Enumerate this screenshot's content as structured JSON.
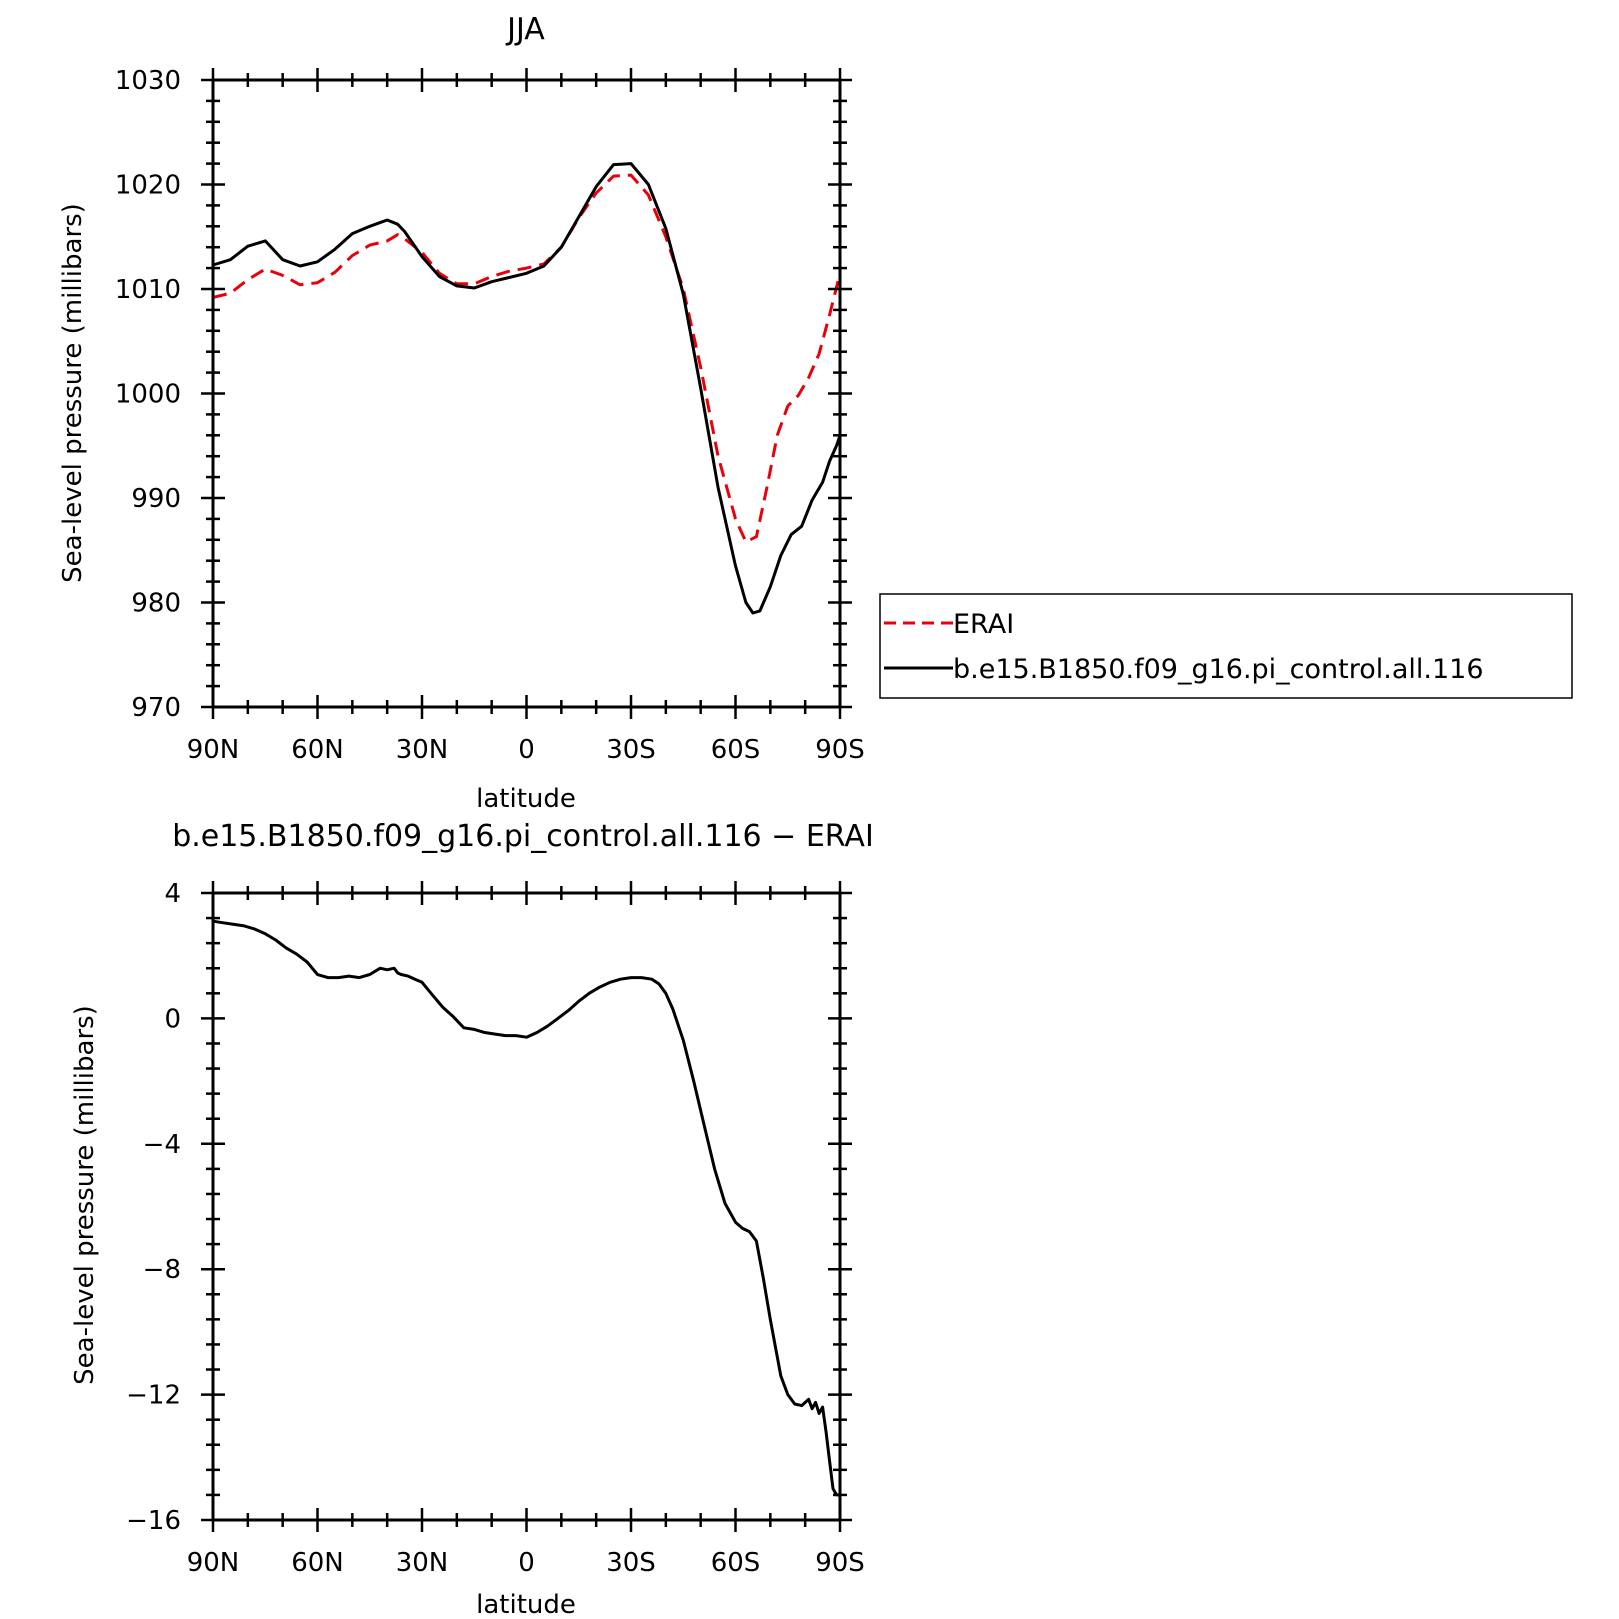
{
  "chart_data": [
    {
      "type": "line",
      "title": "JJA",
      "xlabel": "latitude",
      "ylabel": "Sea-level pressure (millibars)",
      "xlim": [
        90,
        -90
      ],
      "ylim": [
        970,
        1030
      ],
      "yticks": [
        970,
        980,
        990,
        1000,
        1010,
        1020,
        1030
      ],
      "xtick_values": [
        90,
        60,
        30,
        0,
        -30,
        -60,
        -90
      ],
      "xtick_labels": [
        "90N",
        "60N",
        "30N",
        "0",
        "30S",
        "60S",
        "90S"
      ],
      "grid": false,
      "legend": {
        "placement": "right-outside"
      },
      "series": [
        {
          "name": "ERAI",
          "color": "#e8000b",
          "dash": "dashed",
          "x": [
            90,
            85,
            80,
            75,
            70,
            65,
            60,
            55,
            50,
            45,
            40,
            37,
            35,
            30,
            25,
            20,
            15,
            10,
            5,
            0,
            -5,
            -10,
            -15,
            -20,
            -25,
            -30,
            -35,
            -40,
            -45,
            -50,
            -55,
            -60,
            -63,
            -66,
            -69,
            -72,
            -75,
            -78,
            -81,
            -84,
            -87,
            -90
          ],
          "y": [
            1009.2,
            1009.6,
            1010.9,
            1011.9,
            1011.3,
            1010.4,
            1010.6,
            1011.6,
            1013.2,
            1014.2,
            1014.6,
            1015.2,
            1014.8,
            1013.5,
            1011.5,
            1010.5,
            1010.5,
            1011.2,
            1011.7,
            1012.0,
            1012.4,
            1014.0,
            1016.8,
            1019.2,
            1020.8,
            1020.9,
            1019.0,
            1015.0,
            1010.0,
            1002.5,
            994.0,
            988.0,
            985.8,
            986.3,
            991.0,
            996.0,
            998.8,
            999.8,
            1001.5,
            1003.8,
            1007.5,
            1011.5
          ]
        },
        {
          "name": "b.e15.B1850.f09_g16.pi_control.all.116",
          "color": "#000000",
          "dash": "solid",
          "x": [
            90,
            85,
            80,
            75,
            70,
            65,
            60,
            55,
            50,
            45,
            40,
            37,
            35,
            30,
            25,
            20,
            15,
            10,
            5,
            0,
            -5,
            -10,
            -15,
            -20,
            -25,
            -30,
            -35,
            -40,
            -45,
            -50,
            -55,
            -60,
            -63,
            -65,
            -67,
            -70,
            -73,
            -76,
            -79,
            -82,
            -85,
            -87,
            -89,
            -90
          ],
          "y": [
            1012.3,
            1012.8,
            1014.1,
            1014.6,
            1012.8,
            1012.2,
            1012.6,
            1013.8,
            1015.3,
            1016.0,
            1016.6,
            1016.2,
            1015.5,
            1013.1,
            1011.2,
            1010.3,
            1010.1,
            1010.7,
            1011.1,
            1011.5,
            1012.2,
            1014.0,
            1016.9,
            1019.8,
            1021.9,
            1022.0,
            1020.0,
            1015.8,
            1009.5,
            1000.5,
            991.0,
            983.5,
            980.0,
            979.0,
            979.2,
            981.5,
            984.5,
            986.5,
            987.3,
            989.8,
            991.5,
            993.5,
            995.0,
            996.0
          ]
        }
      ]
    },
    {
      "type": "line",
      "title": "b.e15.B1850.f09_g16.pi_control.all.116 − ERAI",
      "xlabel": "latitude",
      "ylabel": "Sea-level pressure (millibars)",
      "xlim": [
        90,
        -90
      ],
      "ylim": [
        -16,
        4
      ],
      "yticks": [
        -16,
        -12,
        -8,
        -4,
        0,
        4
      ],
      "ytick_labels": [
        "−16",
        "−12",
        "−8",
        "−4",
        "0",
        "4"
      ],
      "xtick_values": [
        90,
        60,
        30,
        0,
        -30,
        -60,
        -90
      ],
      "xtick_labels": [
        "90N",
        "60N",
        "30N",
        "0",
        "30S",
        "60S",
        "90S"
      ],
      "grid": false,
      "series": [
        {
          "color": "#000000",
          "dash": "solid",
          "x": [
            90,
            87,
            84,
            81,
            78,
            75,
            72,
            69,
            66,
            63,
            60,
            57,
            54,
            51,
            48,
            45,
            42,
            40,
            38,
            37,
            36,
            34,
            32,
            30,
            27,
            24,
            21,
            18,
            15,
            12,
            9,
            6,
            3,
            0,
            -3,
            -6,
            -9,
            -12,
            -15,
            -18,
            -21,
            -24,
            -27,
            -30,
            -33,
            -36,
            -38,
            -40,
            -42,
            -45,
            -48,
            -51,
            -54,
            -57,
            -60,
            -62,
            -64,
            -66,
            -68,
            -70,
            -72,
            -73,
            -75,
            -77,
            -79,
            -81,
            -82,
            -83,
            -84,
            -85,
            -86,
            -87,
            -88,
            -89,
            -90
          ],
          "y": [
            3.1,
            3.05,
            3.0,
            2.95,
            2.85,
            2.7,
            2.5,
            2.25,
            2.05,
            1.8,
            1.4,
            1.3,
            1.3,
            1.35,
            1.3,
            1.4,
            1.6,
            1.55,
            1.6,
            1.45,
            1.4,
            1.35,
            1.25,
            1.15,
            0.75,
            0.35,
            0.05,
            -0.3,
            -0.35,
            -0.45,
            -0.5,
            -0.55,
            -0.55,
            -0.6,
            -0.45,
            -0.25,
            0.0,
            0.25,
            0.55,
            0.8,
            1.0,
            1.15,
            1.25,
            1.3,
            1.3,
            1.25,
            1.1,
            0.8,
            0.3,
            -0.7,
            -2.0,
            -3.4,
            -4.8,
            -5.9,
            -6.5,
            -6.7,
            -6.8,
            -7.1,
            -8.3,
            -9.6,
            -10.8,
            -11.4,
            -12.0,
            -12.3,
            -12.35,
            -12.15,
            -12.45,
            -12.25,
            -12.6,
            -12.4,
            -13.2,
            -14.1,
            -15.0,
            -15.2,
            -15.2
          ]
        }
      ]
    }
  ]
}
